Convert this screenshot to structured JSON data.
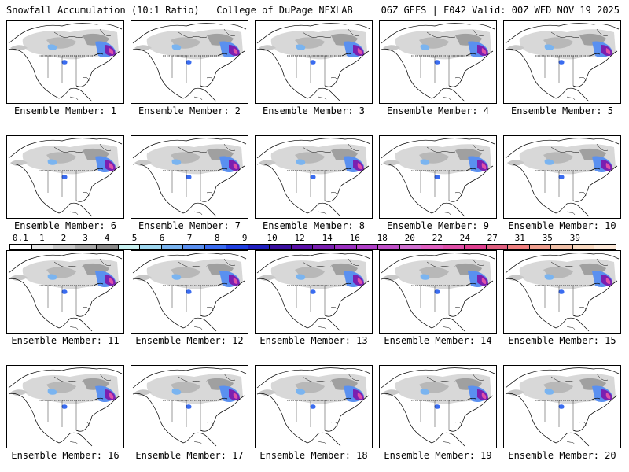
{
  "header": {
    "left": "Snowfall Accumulation (10:1 Ratio) | College of DuPage NEXLAB",
    "right": "06Z GEFS | F042 Valid: 00Z WED NOV 19 2025"
  },
  "members": [
    {
      "label": "Ensemble Member: 1"
    },
    {
      "label": "Ensemble Member: 2"
    },
    {
      "label": "Ensemble Member: 3"
    },
    {
      "label": "Ensemble Member: 4"
    },
    {
      "label": "Ensemble Member: 5"
    },
    {
      "label": "Ensemble Member: 6"
    },
    {
      "label": "Ensemble Member: 7"
    },
    {
      "label": "Ensemble Member: 8"
    },
    {
      "label": "Ensemble Member: 9"
    },
    {
      "label": "Ensemble Member: 10"
    },
    {
      "label": "Ensemble Member: 11"
    },
    {
      "label": "Ensemble Member: 12"
    },
    {
      "label": "Ensemble Member: 13"
    },
    {
      "label": "Ensemble Member: 14"
    },
    {
      "label": "Ensemble Member: 15"
    },
    {
      "label": "Ensemble Member: 16"
    },
    {
      "label": "Ensemble Member: 17"
    },
    {
      "label": "Ensemble Member: 18"
    },
    {
      "label": "Ensemble Member: 19"
    },
    {
      "label": "Ensemble Member: 20"
    }
  ],
  "colorbar": {
    "ticks": [
      "0.1",
      "1",
      "2",
      "3",
      "4",
      "5",
      "6",
      "7",
      "8",
      "9",
      "10",
      "12",
      "14",
      "16",
      "18",
      "20",
      "22",
      "24",
      "27",
      "31",
      "35",
      "39"
    ],
    "colors": [
      "#ffffff",
      "#e6e6e6",
      "#c8c8c8",
      "#a8a8a8",
      "#8a8a8a",
      "#c8f0f0",
      "#a0d8f0",
      "#7ab4f0",
      "#5a90f0",
      "#3a6cf0",
      "#2040e0",
      "#2020c0",
      "#3a10a0",
      "#5a10a8",
      "#7a20b0",
      "#9a30c0",
      "#b040c8",
      "#c050c8",
      "#d070d0",
      "#e060c0",
      "#e050a8",
      "#e04090",
      "#e06080",
      "#f08080",
      "#f0a090",
      "#f0c0a8",
      "#f8d8c0",
      "#fce8d8"
    ]
  }
}
